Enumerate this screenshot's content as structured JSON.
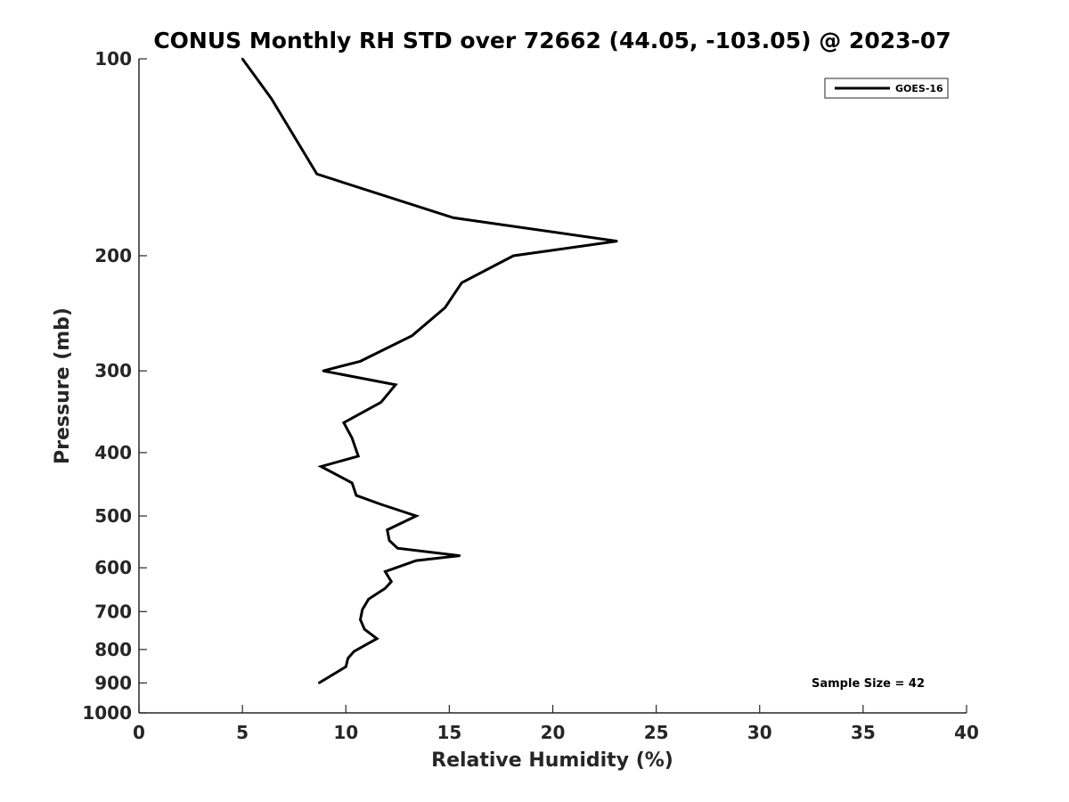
{
  "chart_data": {
    "type": "line",
    "title": "CONUS Monthly RH STD over 72662 (44.05, -103.05) @ 2023-07",
    "xlabel": "Relative Humidity (%)",
    "ylabel": "Pressure (mb)",
    "xlim": [
      0,
      40
    ],
    "ylim": [
      100,
      1000
    ],
    "y_scale": "log",
    "y_direction": "reversed",
    "x_ticks": [
      "0",
      "5",
      "10",
      "15",
      "20",
      "25",
      "30",
      "35",
      "40"
    ],
    "y_ticks": [
      "100",
      "200",
      "300",
      "400",
      "500",
      "600",
      "700",
      "800",
      "900",
      "1000"
    ],
    "grid": false,
    "legend_position": "top-right",
    "series": [
      {
        "name": "GOES-16",
        "color": "#000000",
        "x": [
          5.0,
          6.4,
          8.6,
          15.2,
          23.1,
          18.1,
          15.6,
          14.8,
          13.2,
          10.7,
          8.9,
          12.4,
          11.7,
          9.9,
          10.3,
          10.6,
          8.8,
          10.3,
          10.5,
          11.7,
          13.4,
          12.0,
          12.1,
          12.5,
          15.5,
          13.4,
          11.9,
          12.2,
          11.9,
          11.1,
          10.8,
          10.7,
          10.9,
          11.5,
          10.4,
          10.1,
          10.0,
          8.7
        ],
        "y": [
          100,
          115,
          150,
          175,
          190,
          200,
          220,
          240,
          265,
          290,
          300,
          315,
          335,
          360,
          380,
          405,
          420,
          445,
          465,
          480,
          500,
          525,
          545,
          560,
          575,
          585,
          608,
          630,
          645,
          670,
          695,
          720,
          745,
          770,
          805,
          825,
          850,
          900
        ]
      }
    ],
    "annotations": [
      "Sample Size = 42"
    ]
  }
}
